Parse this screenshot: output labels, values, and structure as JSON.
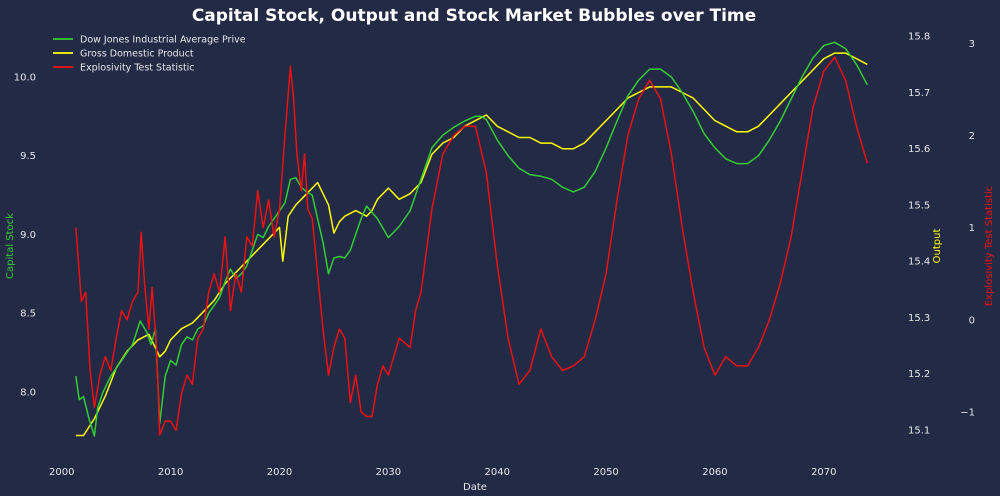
{
  "chart_data": {
    "type": "line",
    "title": "Capital Stock, Output and Stock Market Bubbles over Time",
    "xlabel": "Date",
    "xlim": [
      1998,
      2077
    ],
    "x_ticks": [
      2000,
      2010,
      2020,
      2030,
      2040,
      2050,
      2060,
      2070
    ],
    "grid": false,
    "legend_position": "top-left",
    "axes": {
      "left": {
        "label": "Capital Stock",
        "color": "#33cc33",
        "ylim": [
          7.58,
          10.33
        ],
        "ticks": [
          8.0,
          8.5,
          9.0,
          9.5,
          10.0
        ]
      },
      "right1": {
        "label": "Output",
        "color": "#ffff00",
        "ylim": [
          15.05,
          15.82
        ],
        "ticks": [
          15.1,
          15.2,
          15.3,
          15.4,
          15.5,
          15.6,
          15.7,
          15.8
        ]
      },
      "right2": {
        "label": "Explosivity Test Statistic",
        "color": "#ee1111",
        "ylim": [
          -1.5,
          3.2
        ],
        "ticks": [
          -1,
          0,
          1,
          2,
          3
        ]
      }
    },
    "series": [
      {
        "name": "Dow Jones Industrial Average Prive",
        "axis": "left",
        "color": "#33cc33",
        "x": [
          2001.3,
          2001.6,
          2002.0,
          2002.5,
          2003.0,
          2003.3,
          2003.8,
          2004.5,
          2005.5,
          2006.5,
          2007.2,
          2007.8,
          2008.2,
          2008.6,
          2009.0,
          2009.5,
          2010.0,
          2010.5,
          2011.0,
          2011.5,
          2012.0,
          2012.5,
          2013.0,
          2013.5,
          2014.0,
          2014.5,
          2015.0,
          2015.5,
          2016.0,
          2016.5,
          2017.0,
          2017.5,
          2018.0,
          2018.5,
          2019.0,
          2019.5,
          2020.0,
          2020.5,
          2021.0,
          2021.5,
          2022.0,
          2022.5,
          2023.0,
          2023.5,
          2024.0,
          2024.5,
          2025.0,
          2025.5,
          2026.0,
          2026.5,
          2027.0,
          2027.5,
          2028.0,
          2029.0,
          2030.0,
          2031.0,
          2032.0,
          2033.0,
          2034.0,
          2035.0,
          2036.0,
          2037.0,
          2038.0,
          2038.5,
          2039.0,
          2040.0,
          2041.0,
          2042.0,
          2043.0,
          2044.0,
          2045.0,
          2046.0,
          2047.0,
          2048.0,
          2049.0,
          2050.0,
          2051.0,
          2052.0,
          2053.0,
          2054.0,
          2055.0,
          2056.0,
          2057.0,
          2058.0,
          2059.0,
          2060.0,
          2061.0,
          2062.0,
          2063.0,
          2064.0,
          2065.0,
          2066.0,
          2067.0,
          2068.0,
          2069.0,
          2070.0,
          2071.0,
          2072.0,
          2073.0,
          2074.0
        ],
        "y": [
          8.1,
          7.95,
          7.97,
          7.83,
          7.72,
          7.9,
          8.0,
          8.1,
          8.2,
          8.3,
          8.45,
          8.38,
          8.3,
          8.4,
          7.8,
          8.1,
          8.2,
          8.17,
          8.3,
          8.35,
          8.33,
          8.4,
          8.42,
          8.5,
          8.55,
          8.6,
          8.7,
          8.78,
          8.72,
          8.75,
          8.8,
          8.9,
          9.0,
          8.98,
          9.05,
          9.1,
          9.15,
          9.2,
          9.35,
          9.36,
          9.3,
          9.27,
          9.25,
          9.1,
          8.95,
          8.75,
          8.85,
          8.86,
          8.85,
          8.9,
          9.0,
          9.1,
          9.18,
          9.1,
          8.98,
          9.05,
          9.15,
          9.35,
          9.55,
          9.63,
          9.68,
          9.72,
          9.75,
          9.75,
          9.73,
          9.6,
          9.5,
          9.42,
          9.38,
          9.37,
          9.35,
          9.3,
          9.27,
          9.3,
          9.4,
          9.55,
          9.72,
          9.88,
          9.98,
          10.05,
          10.05,
          10.0,
          9.9,
          9.78,
          9.64,
          9.55,
          9.48,
          9.45,
          9.45,
          9.5,
          9.6,
          9.72,
          9.86,
          10.0,
          10.12,
          10.2,
          10.22,
          10.18,
          10.08,
          9.95
        ]
      },
      {
        "name": "Gross Domestic Product",
        "axis": "right1",
        "color": "#ffff00",
        "x": [
          2001.3,
          2002.0,
          2003.0,
          2004.0,
          2005.0,
          2006.0,
          2007.0,
          2008.0,
          2009.0,
          2009.5,
          2010.0,
          2011.0,
          2012.0,
          2013.0,
          2014.0,
          2015.0,
          2016.0,
          2017.0,
          2018.0,
          2019.0,
          2020.0,
          2020.3,
          2020.8,
          2021.5,
          2022.0,
          2022.5,
          2023.0,
          2023.5,
          2024.0,
          2024.5,
          2025.0,
          2025.5,
          2026.0,
          2027.0,
          2028.0,
          2028.5,
          2029.0,
          2030.0,
          2031.0,
          2032.0,
          2033.0,
          2034.0,
          2035.0,
          2036.0,
          2037.0,
          2038.0,
          2039.0,
          2040.0,
          2041.0,
          2042.0,
          2043.0,
          2044.0,
          2045.0,
          2046.0,
          2047.0,
          2048.0,
          2049.0,
          2050.0,
          2051.0,
          2052.0,
          2053.0,
          2054.0,
          2055.0,
          2056.0,
          2057.0,
          2058.0,
          2059.0,
          2060.0,
          2061.0,
          2062.0,
          2063.0,
          2064.0,
          2065.0,
          2066.0,
          2067.0,
          2068.0,
          2069.0,
          2070.0,
          2071.0,
          2072.0,
          2073.0,
          2074.0
        ],
        "y": [
          15.09,
          15.09,
          15.12,
          15.16,
          15.21,
          15.24,
          15.26,
          15.27,
          15.23,
          15.24,
          15.26,
          15.28,
          15.29,
          15.31,
          15.33,
          15.36,
          15.38,
          15.4,
          15.42,
          15.44,
          15.46,
          15.4,
          15.48,
          15.5,
          15.51,
          15.52,
          15.53,
          15.54,
          15.52,
          15.5,
          15.45,
          15.47,
          15.48,
          15.49,
          15.48,
          15.49,
          15.51,
          15.53,
          15.51,
          15.52,
          15.54,
          15.59,
          15.61,
          15.62,
          15.64,
          15.65,
          15.66,
          15.64,
          15.63,
          15.62,
          15.62,
          15.61,
          15.61,
          15.6,
          15.6,
          15.61,
          15.63,
          15.65,
          15.67,
          15.69,
          15.7,
          15.71,
          15.71,
          15.71,
          15.7,
          15.69,
          15.67,
          15.65,
          15.64,
          15.63,
          15.63,
          15.64,
          15.66,
          15.68,
          15.7,
          15.72,
          15.74,
          15.76,
          15.77,
          15.77,
          15.76,
          15.75
        ]
      },
      {
        "name": "Explosivity Test Statistic",
        "axis": "right2",
        "color": "#ee1111",
        "x": [
          2001.3,
          2001.8,
          2002.2,
          2002.6,
          2003.0,
          2003.5,
          2004.0,
          2004.5,
          2005.0,
          2005.5,
          2006.0,
          2006.5,
          2007.0,
          2007.3,
          2007.6,
          2008.0,
          2008.3,
          2008.7,
          2009.0,
          2009.5,
          2010.0,
          2010.5,
          2011.0,
          2011.5,
          2012.0,
          2012.5,
          2013.0,
          2013.5,
          2014.0,
          2014.5,
          2015.0,
          2015.5,
          2016.0,
          2016.5,
          2017.0,
          2017.5,
          2018.0,
          2018.5,
          2019.0,
          2019.5,
          2020.0,
          2020.5,
          2021.0,
          2021.3,
          2021.6,
          2022.0,
          2022.3,
          2022.6,
          2023.0,
          2023.5,
          2024.0,
          2024.5,
          2025.0,
          2025.5,
          2026.0,
          2026.5,
          2027.0,
          2027.5,
          2028.0,
          2028.5,
          2029.0,
          2029.5,
          2030.0,
          2030.5,
          2031.0,
          2031.5,
          2032.0,
          2032.5,
          2033.0,
          2034.0,
          2035.0,
          2036.0,
          2037.0,
          2038.0,
          2039.0,
          2040.0,
          2041.0,
          2042.0,
          2043.0,
          2044.0,
          2045.0,
          2046.0,
          2047.0,
          2048.0,
          2049.0,
          2050.0,
          2051.0,
          2052.0,
          2053.0,
          2054.0,
          2055.0,
          2056.0,
          2057.0,
          2058.0,
          2059.0,
          2060.0,
          2061.0,
          2062.0,
          2063.0,
          2064.0,
          2065.0,
          2066.0,
          2067.0,
          2068.0,
          2069.0,
          2070.0,
          2071.0,
          2072.0,
          2073.0,
          2074.0
        ],
        "y": [
          1.0,
          0.2,
          0.3,
          -0.55,
          -0.95,
          -0.6,
          -0.4,
          -0.55,
          -0.2,
          0.1,
          0.0,
          0.2,
          0.3,
          0.95,
          0.4,
          -0.1,
          0.35,
          -0.3,
          -1.25,
          -1.1,
          -1.1,
          -1.2,
          -0.8,
          -0.6,
          -0.7,
          -0.2,
          -0.1,
          0.3,
          0.5,
          0.3,
          0.9,
          0.1,
          0.5,
          0.3,
          0.9,
          0.8,
          1.4,
          1.0,
          1.3,
          0.9,
          1.2,
          2.0,
          2.75,
          2.4,
          1.8,
          1.4,
          1.8,
          1.2,
          1.1,
          0.5,
          -0.1,
          -0.6,
          -0.3,
          -0.1,
          -0.2,
          -0.9,
          -0.6,
          -1.0,
          -1.05,
          -1.05,
          -0.7,
          -0.5,
          -0.6,
          -0.4,
          -0.2,
          -0.25,
          -0.3,
          0.1,
          0.3,
          1.2,
          1.8,
          2.0,
          2.1,
          2.1,
          1.6,
          0.6,
          -0.2,
          -0.7,
          -0.55,
          -0.1,
          -0.4,
          -0.55,
          -0.5,
          -0.4,
          0.0,
          0.5,
          1.3,
          2.0,
          2.4,
          2.6,
          2.4,
          1.8,
          1.0,
          0.3,
          -0.3,
          -0.6,
          -0.4,
          -0.5,
          -0.5,
          -0.3,
          0.0,
          0.4,
          0.9,
          1.6,
          2.3,
          2.7,
          2.85,
          2.6,
          2.1,
          1.7
        ]
      }
    ]
  }
}
